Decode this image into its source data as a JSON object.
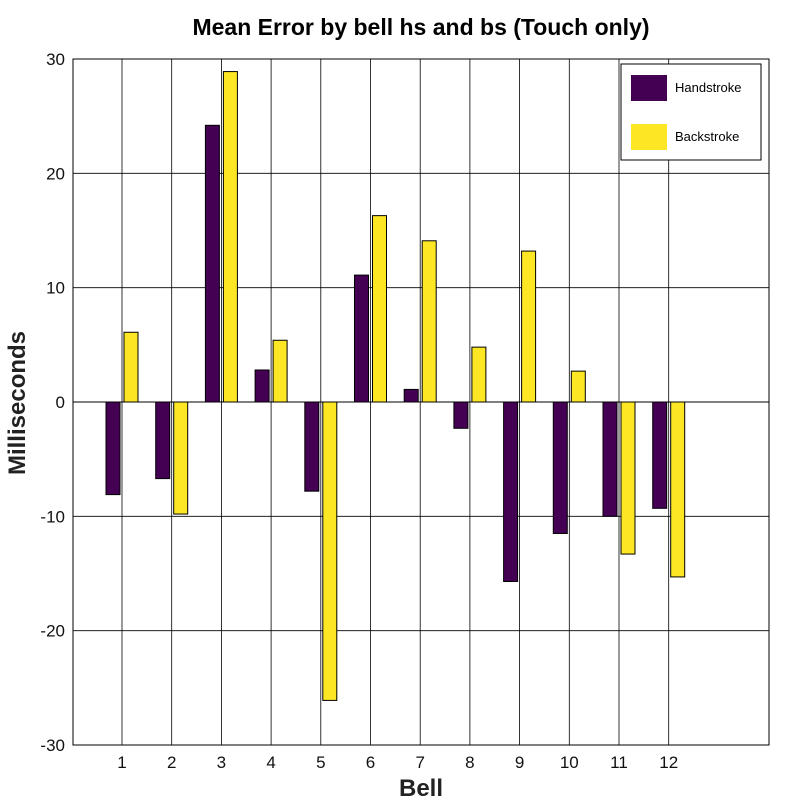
{
  "chart_data": {
    "type": "bar",
    "title": "Mean Error by bell hs and bs (Touch only)",
    "xlabel": "Bell",
    "ylabel": "Milliseconds",
    "categories": [
      "1",
      "2",
      "3",
      "4",
      "5",
      "6",
      "7",
      "8",
      "9",
      "10",
      "11",
      "12"
    ],
    "ylim": [
      -30,
      30
    ],
    "yticks": [
      -30,
      -20,
      -10,
      0,
      10,
      20,
      30
    ],
    "grid": true,
    "legend_position": "top-right",
    "series": [
      {
        "name": "Handstroke",
        "color": "#440154",
        "values": [
          -8.1,
          -6.7,
          24.2,
          2.8,
          -7.8,
          11.1,
          1.1,
          -2.3,
          -15.7,
          -11.5,
          -10.0,
          -9.3
        ]
      },
      {
        "name": "Backstroke",
        "color": "#fde725",
        "values": [
          6.1,
          -9.8,
          28.9,
          5.4,
          -26.1,
          16.3,
          14.1,
          4.8,
          13.2,
          2.7,
          -13.3,
          -15.3
        ]
      }
    ]
  }
}
